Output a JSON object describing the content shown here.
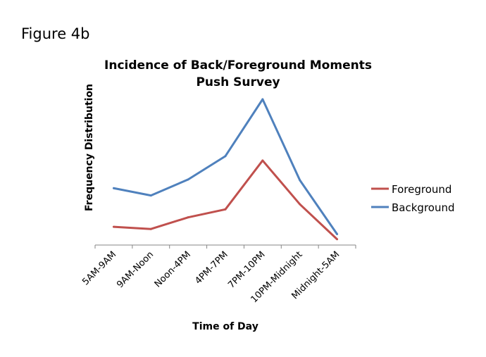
{
  "figure_label": "Figure 4b",
  "chart_data": {
    "type": "line",
    "title": "Incidence of Back/Foreground Moments",
    "subtitle": "Push Survey",
    "xlabel": "Time of Day",
    "ylabel": "Frequency Distribution",
    "categories": [
      "5AM-9AM",
      "9AM-Noon",
      "Noon-4PM",
      "4PM-7PM",
      "7PM-10PM",
      "10PM-Midnight",
      "Midnight-5AM"
    ],
    "ylim": [
      0,
      100
    ],
    "grid": false,
    "legend": "right",
    "series": [
      {
        "name": "Foreground",
        "color": "#c0504d",
        "values": [
          12.5,
          11,
          19,
          24.5,
          58,
          28,
          4
        ]
      },
      {
        "name": "Background",
        "color": "#4f81bd",
        "values": [
          39,
          34,
          45,
          61,
          100,
          44.5,
          7.5
        ]
      }
    ]
  }
}
